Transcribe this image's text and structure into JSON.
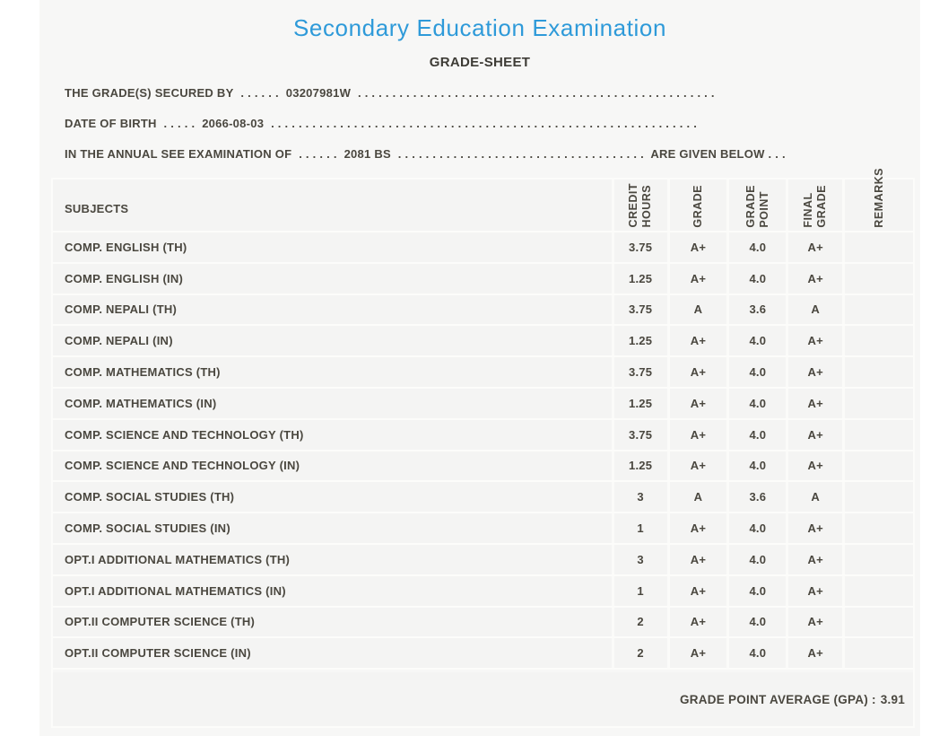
{
  "colors": {
    "title_accent": "#2e9ad9",
    "text": "#4a473f",
    "card_bg": "#f7f7f6",
    "cell_bg": "#f4f4f3"
  },
  "header": {
    "title": "Secondary Education Examination",
    "subtitle": "GRADE-SHEET"
  },
  "meta": {
    "secured": {
      "label": "THE GRADE(S) SECURED BY",
      "dots1": ". . . . . .",
      "value": "03207981W",
      "dots2": ". . . . . . . . . . . . . . . . . . . . . . . . . . . . . . . . . . . . . . . . . . . . . . . . . . . ."
    },
    "dob": {
      "label": "DATE OF BIRTH",
      "dots1": ". . . . .",
      "value": "2066-08-03",
      "dots2": ". . . . . . . . . . . . . . . . . . . . . . . . . . . . . . . . . . . . . . . . . . . . . . . . . . . . . . . . . . . . . ."
    },
    "exam": {
      "label": "IN THE ANNUAL SEE EXAMINATION OF",
      "dots1": ". . . . . .",
      "value": "2081 BS",
      "dots2": ". . . . . . . . . . . . . . . . . . . . . . . . . . . . . . . . . . . .",
      "tail": "ARE GIVEN BELOW . . ."
    }
  },
  "table": {
    "columns": [
      "SUBJECTS",
      "CREDIT\nHOURS",
      "GRADE",
      "GRADE\nPOINT",
      "FINAL\nGRADE",
      "REMARKS"
    ],
    "rows": [
      {
        "subject": "COMP. ENGLISH (TH)",
        "credit_hours": "3.75",
        "grade": "A+",
        "grade_point": "4.0",
        "final_grade": "A+",
        "remarks": ""
      },
      {
        "subject": "COMP. ENGLISH (IN)",
        "credit_hours": "1.25",
        "grade": "A+",
        "grade_point": "4.0",
        "final_grade": "A+",
        "remarks": ""
      },
      {
        "subject": "COMP. NEPALI (TH)",
        "credit_hours": "3.75",
        "grade": "A",
        "grade_point": "3.6",
        "final_grade": "A",
        "remarks": ""
      },
      {
        "subject": "COMP. NEPALI (IN)",
        "credit_hours": "1.25",
        "grade": "A+",
        "grade_point": "4.0",
        "final_grade": "A+",
        "remarks": ""
      },
      {
        "subject": "COMP. MATHEMATICS (TH)",
        "credit_hours": "3.75",
        "grade": "A+",
        "grade_point": "4.0",
        "final_grade": "A+",
        "remarks": ""
      },
      {
        "subject": "COMP. MATHEMATICS (IN)",
        "credit_hours": "1.25",
        "grade": "A+",
        "grade_point": "4.0",
        "final_grade": "A+",
        "remarks": ""
      },
      {
        "subject": "COMP. SCIENCE AND TECHNOLOGY (TH)",
        "credit_hours": "3.75",
        "grade": "A+",
        "grade_point": "4.0",
        "final_grade": "A+",
        "remarks": ""
      },
      {
        "subject": "COMP. SCIENCE AND TECHNOLOGY (IN)",
        "credit_hours": "1.25",
        "grade": "A+",
        "grade_point": "4.0",
        "final_grade": "A+",
        "remarks": ""
      },
      {
        "subject": "COMP. SOCIAL STUDIES (TH)",
        "credit_hours": "3",
        "grade": "A",
        "grade_point": "3.6",
        "final_grade": "A",
        "remarks": ""
      },
      {
        "subject": "COMP. SOCIAL STUDIES (IN)",
        "credit_hours": "1",
        "grade": "A+",
        "grade_point": "4.0",
        "final_grade": "A+",
        "remarks": ""
      },
      {
        "subject": "OPT.I ADDITIONAL MATHEMATICS (TH)",
        "credit_hours": "3",
        "grade": "A+",
        "grade_point": "4.0",
        "final_grade": "A+",
        "remarks": ""
      },
      {
        "subject": "OPT.I ADDITIONAL MATHEMATICS (IN)",
        "credit_hours": "1",
        "grade": "A+",
        "grade_point": "4.0",
        "final_grade": "A+",
        "remarks": ""
      },
      {
        "subject": "OPT.II COMPUTER SCIENCE (TH)",
        "credit_hours": "2",
        "grade": "A+",
        "grade_point": "4.0",
        "final_grade": "A+",
        "remarks": ""
      },
      {
        "subject": "OPT.II COMPUTER SCIENCE (IN)",
        "credit_hours": "2",
        "grade": "A+",
        "grade_point": "4.0",
        "final_grade": "A+",
        "remarks": ""
      }
    ],
    "gpa": {
      "label": "GRADE POINT AVERAGE (GPA) :",
      "value": "3.91"
    }
  }
}
